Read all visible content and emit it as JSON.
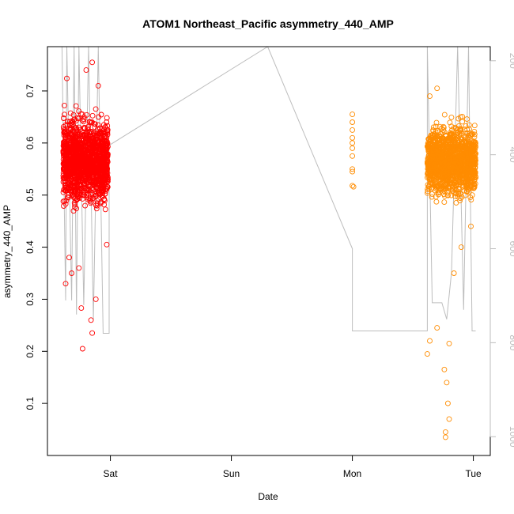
{
  "chart_data": {
    "type": "scatter",
    "title": "ATOM1 Northeast_Pacific asymmetry_440_AMP",
    "xlabel": "Date",
    "ylabel": "asymmetry_440_AMP",
    "x_ticks": [
      "Sat",
      "Sun",
      "Mon",
      "Tue"
    ],
    "x_tick_days": [
      1,
      2,
      3,
      4
    ],
    "xlim_days": [
      0.48,
      4.14
    ],
    "ylim": [
      0.0,
      0.785
    ],
    "y_ticks": [
      0.1,
      0.2,
      0.3,
      0.4,
      0.5,
      0.6,
      0.7
    ],
    "y2_ticks": [
      200,
      400,
      600,
      800,
      1000
    ],
    "y2lim": [
      1040,
      170
    ],
    "y2_reversed": true,
    "grid": false,
    "colors": {
      "series1": "#ff0000",
      "series2": "#ff8c00",
      "depth_line": "#bdbdbd"
    },
    "series": [
      {
        "color": "#ff0000",
        "x_range_days": [
          0.61,
          0.98
        ],
        "y_center": 0.565,
        "y_core_range": [
          0.45,
          0.68
        ],
        "y_max": 0.755,
        "y_min": 0.205,
        "sample_points": [
          {
            "x": 0.62,
            "y": 0.672
          },
          {
            "x": 0.64,
            "y": 0.724
          },
          {
            "x": 0.66,
            "y": 0.38
          },
          {
            "x": 0.63,
            "y": 0.33
          },
          {
            "x": 0.76,
            "y": 0.283
          },
          {
            "x": 0.77,
            "y": 0.205
          },
          {
            "x": 0.8,
            "y": 0.74
          },
          {
            "x": 0.85,
            "y": 0.755
          },
          {
            "x": 0.84,
            "y": 0.26
          },
          {
            "x": 0.85,
            "y": 0.235
          },
          {
            "x": 0.9,
            "y": 0.71
          },
          {
            "x": 0.97,
            "y": 0.405
          },
          {
            "x": 0.74,
            "y": 0.36
          },
          {
            "x": 0.68,
            "y": 0.35
          },
          {
            "x": 0.88,
            "y": 0.3
          }
        ]
      },
      {
        "color": "#ff8c00",
        "x_range_days": [
          3.0,
          3.03
        ],
        "y_range": [
          0.515,
          0.655
        ],
        "sample_points": [
          {
            "x": 3.0,
            "y": 0.655
          },
          {
            "x": 3.0,
            "y": 0.64
          },
          {
            "x": 3.0,
            "y": 0.625
          },
          {
            "x": 3.0,
            "y": 0.61
          },
          {
            "x": 3.0,
            "y": 0.6
          },
          {
            "x": 3.0,
            "y": 0.59
          },
          {
            "x": 3.0,
            "y": 0.575
          },
          {
            "x": 3.0,
            "y": 0.55
          },
          {
            "x": 3.0,
            "y": 0.545
          },
          {
            "x": 3.0,
            "y": 0.518
          },
          {
            "x": 3.01,
            "y": 0.516
          }
        ]
      },
      {
        "color": "#ff8c00",
        "x_range_days": [
          3.62,
          4.02
        ],
        "y_center": 0.565,
        "y_core_range": [
          0.46,
          0.65
        ],
        "y_max": 0.705,
        "y_min": 0.035,
        "sample_points": [
          {
            "x": 3.64,
            "y": 0.69
          },
          {
            "x": 3.7,
            "y": 0.705
          },
          {
            "x": 3.62,
            "y": 0.195
          },
          {
            "x": 3.64,
            "y": 0.22
          },
          {
            "x": 3.77,
            "y": 0.035
          },
          {
            "x": 3.77,
            "y": 0.045
          },
          {
            "x": 3.8,
            "y": 0.07
          },
          {
            "x": 3.79,
            "y": 0.1
          },
          {
            "x": 3.78,
            "y": 0.14
          },
          {
            "x": 3.76,
            "y": 0.165
          },
          {
            "x": 3.8,
            "y": 0.215
          },
          {
            "x": 3.7,
            "y": 0.245
          },
          {
            "x": 3.84,
            "y": 0.35
          },
          {
            "x": 3.9,
            "y": 0.4
          },
          {
            "x": 3.98,
            "y": 0.44
          }
        ]
      }
    ],
    "depth_profile": {
      "color": "#bdbdbd",
      "y_axis": "right",
      "points": [
        {
          "x": 0.6,
          "y": 170
        },
        {
          "x": 0.63,
          "y": 710
        },
        {
          "x": 0.64,
          "y": 170
        },
        {
          "x": 0.68,
          "y": 710
        },
        {
          "x": 0.7,
          "y": 170
        },
        {
          "x": 0.72,
          "y": 740
        },
        {
          "x": 0.74,
          "y": 170
        },
        {
          "x": 0.78,
          "y": 720
        },
        {
          "x": 0.82,
          "y": 170
        },
        {
          "x": 0.86,
          "y": 750
        },
        {
          "x": 0.9,
          "y": 170
        },
        {
          "x": 0.94,
          "y": 780
        },
        {
          "x": 0.99,
          "y": 780
        },
        {
          "x": 0.99,
          "y": 380
        },
        {
          "x": 2.3,
          "y": 170
        },
        {
          "x": 3.0,
          "y": 600
        },
        {
          "x": 3.0,
          "y": 775
        },
        {
          "x": 3.62,
          "y": 775
        },
        {
          "x": 3.62,
          "y": 170
        },
        {
          "x": 3.66,
          "y": 715
        },
        {
          "x": 3.74,
          "y": 715
        },
        {
          "x": 3.78,
          "y": 750
        },
        {
          "x": 3.82,
          "y": 650
        },
        {
          "x": 3.87,
          "y": 170
        },
        {
          "x": 3.92,
          "y": 730
        },
        {
          "x": 3.96,
          "y": 170
        },
        {
          "x": 3.99,
          "y": 775
        },
        {
          "x": 4.02,
          "y": 775
        }
      ]
    }
  }
}
